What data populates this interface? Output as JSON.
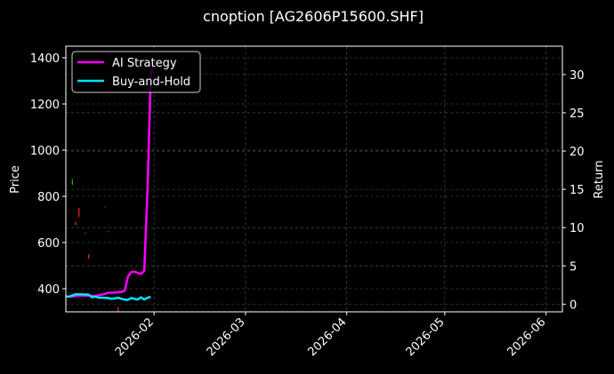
{
  "chart_data": {
    "type": "line",
    "title": "cnoption [AG2606P15600.SHF]",
    "ylabel_left": "Price",
    "ylabel_right": "Return",
    "xlim": [
      "2026-01-05",
      "2026-06-06"
    ],
    "ylim_left": [
      300,
      1450
    ],
    "ylim_right": [
      -1,
      33.7
    ],
    "x_ticks": [
      "2026-02",
      "2026-03",
      "2026-04",
      "2026-05",
      "2026-06"
    ],
    "x_tick_dates": [
      "2026-02-01",
      "2026-03-01",
      "2026-04-01",
      "2026-05-01",
      "2026-06-01"
    ],
    "y_ticks_left": [
      400,
      600,
      800,
      1000,
      1200,
      1400
    ],
    "y_ticks_right": [
      0,
      5,
      10,
      15,
      20,
      25,
      30
    ],
    "grid": true,
    "legend_position": "top-left",
    "background_color": "#000000",
    "series": [
      {
        "name": "AI Strategy",
        "axis": "right",
        "color": "#ff00ff",
        "points": [
          [
            "2026-01-05",
            1.0
          ],
          [
            "2026-01-07",
            1.0
          ],
          [
            "2026-01-09",
            1.15
          ],
          [
            "2026-01-12",
            1.1
          ],
          [
            "2026-01-14",
            1.05
          ],
          [
            "2026-01-15",
            1.15
          ],
          [
            "2026-01-16",
            1.25
          ],
          [
            "2026-01-17",
            1.35
          ],
          [
            "2026-01-18",
            1.5
          ],
          [
            "2026-01-19",
            1.5
          ],
          [
            "2026-01-21",
            1.55
          ],
          [
            "2026-01-22",
            1.6
          ],
          [
            "2026-01-23",
            1.75
          ],
          [
            "2026-01-24",
            3.6
          ],
          [
            "2026-01-25",
            4.2
          ],
          [
            "2026-01-26",
            4.25
          ],
          [
            "2026-01-27",
            4.1
          ],
          [
            "2026-01-28",
            3.95
          ],
          [
            "2026-01-29",
            4.35
          ],
          [
            "2026-01-30",
            15.0
          ],
          [
            "2026-01-31",
            30.0
          ],
          [
            "2026-02-01",
            31.5
          ]
        ]
      },
      {
        "name": "Buy-and-Hold",
        "axis": "right",
        "color": "#00e5ff",
        "points": [
          [
            "2026-01-05",
            1.0
          ],
          [
            "2026-01-06",
            1.0
          ],
          [
            "2026-01-08",
            1.3
          ],
          [
            "2026-01-09",
            1.3
          ],
          [
            "2026-01-12",
            1.25
          ],
          [
            "2026-01-13",
            0.9
          ],
          [
            "2026-01-14",
            1.0
          ],
          [
            "2026-01-15",
            0.85
          ],
          [
            "2026-01-16",
            0.85
          ],
          [
            "2026-01-18",
            0.8
          ],
          [
            "2026-01-19",
            0.7
          ],
          [
            "2026-01-20",
            0.75
          ],
          [
            "2026-01-21",
            0.85
          ],
          [
            "2026-01-22",
            0.7
          ],
          [
            "2026-01-23",
            0.6
          ],
          [
            "2026-01-24",
            0.55
          ],
          [
            "2026-01-25",
            0.8
          ],
          [
            "2026-01-26",
            0.7
          ],
          [
            "2026-01-27",
            0.6
          ],
          [
            "2026-01-28",
            0.9
          ],
          [
            "2026-01-29",
            0.6
          ],
          [
            "2026-01-30",
            0.85
          ],
          [
            "2026-01-31",
            0.95
          ]
        ]
      }
    ],
    "price_marks": [
      {
        "date": "2026-01-07",
        "low": 850,
        "high": 875,
        "color": "#00cc00"
      },
      {
        "date": "2026-01-08",
        "low": 675,
        "high": 690,
        "color": "#ff2020"
      },
      {
        "date": "2026-01-09",
        "low": 710,
        "high": 750,
        "color": "#ff2020"
      },
      {
        "date": "2026-01-11",
        "low": 638,
        "high": 644,
        "color": "#ff2020"
      },
      {
        "date": "2026-01-12",
        "low": 530,
        "high": 550,
        "color": "#ff2020"
      },
      {
        "date": "2026-01-17",
        "low": 752,
        "high": 756,
        "color": "#ff2020"
      },
      {
        "date": "2026-01-18",
        "low": 645,
        "high": 650,
        "color": "#ff2020"
      },
      {
        "date": "2026-01-21",
        "low": 300,
        "high": 320,
        "color": "#ff2020"
      }
    ]
  }
}
